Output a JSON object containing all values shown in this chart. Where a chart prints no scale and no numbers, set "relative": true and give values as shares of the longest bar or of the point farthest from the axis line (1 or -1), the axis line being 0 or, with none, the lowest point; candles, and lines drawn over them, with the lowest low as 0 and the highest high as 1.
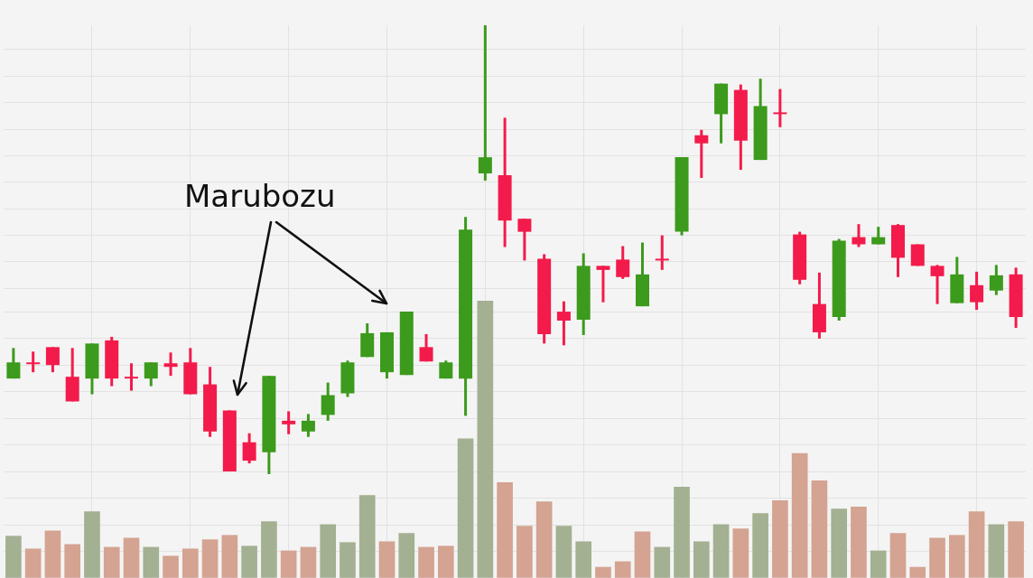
{
  "chart_data": [
    {
      "type": "candlestick",
      "relative": true,
      "grid": true,
      "annotations": [
        "Marubozu"
      ],
      "categories": [
        null,
        null,
        null,
        null,
        null,
        null,
        null,
        null,
        null,
        null,
        null,
        null,
        null,
        null,
        null,
        null,
        null,
        null,
        null,
        null,
        null,
        null,
        null,
        null,
        null,
        null,
        null,
        null,
        null,
        null,
        null,
        null,
        null,
        null,
        null,
        null,
        null,
        null,
        null,
        null,
        null,
        null,
        null,
        null,
        null,
        null,
        null,
        null,
        null,
        null,
        null,
        null
      ],
      "ohlc": [
        [
          0.213,
          0.281,
          0.213,
          0.249
        ],
        [
          0.249,
          0.273,
          0.227,
          0.245
        ],
        [
          0.283,
          0.283,
          0.227,
          0.243
        ],
        [
          0.217,
          0.281,
          0.162,
          0.162
        ],
        [
          0.213,
          0.291,
          0.178,
          0.291
        ],
        [
          0.298,
          0.306,
          0.196,
          0.213
        ],
        [
          0.217,
          0.247,
          0.186,
          0.213
        ],
        [
          0.213,
          0.249,
          0.196,
          0.249
        ],
        [
          0.247,
          0.271,
          0.219,
          0.239
        ],
        [
          0.249,
          0.281,
          0.178,
          0.178
        ],
        [
          0.2,
          0.239,
          0.083,
          0.095
        ],
        [
          0.142,
          0.142,
          0.006,
          0.006
        ],
        [
          0.071,
          0.091,
          0.024,
          0.03
        ],
        [
          0.049,
          0.219,
          0,
          0.219
        ],
        [
          0.119,
          0.14,
          0.089,
          0.111
        ],
        [
          0.095,
          0.134,
          0.083,
          0.119
        ],
        [
          0.132,
          0.204,
          0.119,
          0.176
        ],
        [
          0.18,
          0.253,
          0.172,
          0.249
        ],
        [
          0.261,
          0.336,
          0.261,
          0.314
        ],
        [
          0.227,
          0.316,
          0.213,
          0.316
        ],
        [
          0.221,
          0.362,
          0.221,
          0.362
        ],
        [
          0.283,
          0.312,
          0.251,
          0.251
        ],
        [
          0.213,
          0.253,
          0.213,
          0.249
        ],
        [
          0.213,
          0.573,
          0.13,
          0.545
        ],
        [
          0.67,
          1,
          0.654,
          0.706
        ],
        [
          0.666,
          0.794,
          0.506,
          0.565
        ],
        [
          0.569,
          0.569,
          0.476,
          0.54
        ],
        [
          0.48,
          0.49,
          0.291,
          0.312
        ],
        [
          0.362,
          0.385,
          0.287,
          0.342
        ],
        [
          0.344,
          0.492,
          0.31,
          0.464
        ],
        [
          0.464,
          0.464,
          0.383,
          0.455
        ],
        [
          0.478,
          0.508,
          0.435,
          0.439
        ],
        [
          0.374,
          0.516,
          0.374,
          0.445
        ],
        [
          0.48,
          0.532,
          0.455,
          0.476
        ],
        [
          0.54,
          0.706,
          0.532,
          0.706
        ],
        [
          0.755,
          0.767,
          0.66,
          0.737
        ],
        [
          0.802,
          0.87,
          0.737,
          0.87
        ],
        [
          0.856,
          0.868,
          0.678,
          0.743
        ],
        [
          0.7,
          0.881,
          0.7,
          0.82
        ],
        [
          0.806,
          0.858,
          0.773,
          0.802
        ],
        [
          0.534,
          0.54,
          0.423,
          0.433
        ],
        [
          0.379,
          0.449,
          0.302,
          0.316
        ],
        [
          0.35,
          0.524,
          0.342,
          0.52
        ],
        [
          0.528,
          0.557,
          0.506,
          0.512
        ],
        [
          0.512,
          0.551,
          0.512,
          0.528
        ],
        [
          0.555,
          0.557,
          0.439,
          0.482
        ],
        [
          0.512,
          0.512,
          0.464,
          0.464
        ],
        [
          0.464,
          0.466,
          0.379,
          0.441
        ],
        [
          0.381,
          0.484,
          0.381,
          0.445
        ],
        [
          0.421,
          0.451,
          0.366,
          0.383
        ],
        [
          0.409,
          0.466,
          0.399,
          0.443
        ],
        [
          0.445,
          0.46,
          0.326,
          0.35
        ]
      ],
      "colors": [
        "#3c9a1c",
        "#f31b4b",
        "#f31b4b",
        "#f31b4b",
        "#3c9a1c",
        "#f31b4b",
        "#f31b4b",
        "#3c9a1c",
        "#f31b4b",
        "#f31b4b",
        "#f31b4b",
        "#f31b4b",
        "#f31b4b",
        "#3c9a1c",
        "#f31b4b",
        "#3c9a1c",
        "#3c9a1c",
        "#3c9a1c",
        "#3c9a1c",
        "#3c9a1c",
        "#3c9a1c",
        "#f31b4b",
        "#3c9a1c",
        "#3c9a1c",
        "#3c9a1c",
        "#f31b4b",
        "#f31b4b",
        "#f31b4b",
        "#f31b4b",
        "#3c9a1c",
        "#f31b4b",
        "#f31b4b",
        "#3c9a1c",
        "#f31b4b",
        "#3c9a1c",
        "#f31b4b",
        "#3c9a1c",
        "#f31b4b",
        "#3c9a1c",
        "#f31b4b",
        "#f31b4b",
        "#f31b4b",
        "#3c9a1c",
        "#f31b4b",
        "#3c9a1c",
        "#f31b4b",
        "#f31b4b",
        "#f31b4b",
        "#3c9a1c",
        "#f31b4b",
        "#3c9a1c",
        "#f31b4b"
      ]
    },
    {
      "type": "bar",
      "relative": true,
      "grid": true,
      "categories": [
        null,
        null,
        null,
        null,
        null,
        null,
        null,
        null,
        null,
        null,
        null,
        null,
        null,
        null,
        null,
        null,
        null,
        null,
        null,
        null,
        null,
        null,
        null,
        null,
        null,
        null,
        null,
        null,
        null,
        null,
        null,
        null,
        null,
        null,
        null,
        null,
        null,
        null,
        null,
        null,
        null,
        null,
        null,
        null,
        null,
        null,
        null,
        null,
        null,
        null,
        null,
        null
      ],
      "values": [
        0.151,
        0.105,
        0.17,
        0.121,
        0.239,
        0.111,
        0.144,
        0.111,
        0.079,
        0.105,
        0.138,
        0.154,
        0.115,
        0.203,
        0.098,
        0.111,
        0.193,
        0.128,
        0.298,
        0.131,
        0.161,
        0.111,
        0.115,
        0.502,
        1,
        0.344,
        0.187,
        0.275,
        0.187,
        0.131,
        0.039,
        0.059,
        0.167,
        0.111,
        0.328,
        0.131,
        0.193,
        0.177,
        0.233,
        0.279,
        0.449,
        0.351,
        0.249,
        0.256,
        0.098,
        0.161,
        0.039,
        0.144,
        0.154,
        0.239,
        0.193,
        0.203
      ],
      "colors": [
        "#a3b092",
        "#d4a391",
        "#d4a391",
        "#d4a391",
        "#a3b092",
        "#d4a391",
        "#d4a391",
        "#a3b092",
        "#d4a391",
        "#d4a391",
        "#d4a391",
        "#d4a391",
        "#a3b092",
        "#a3b092",
        "#d4a391",
        "#d4a391",
        "#a3b092",
        "#a3b092",
        "#a3b092",
        "#d4a391",
        "#a3b092",
        "#d4a391",
        "#d4a391",
        "#a3b092",
        "#a3b092",
        "#d4a391",
        "#d4a391",
        "#d4a391",
        "#a3b092",
        "#a3b092",
        "#d4a391",
        "#d4a391",
        "#d4a391",
        "#a3b092",
        "#a3b092",
        "#a3b092",
        "#a3b092",
        "#d4a391",
        "#a3b092",
        "#d4a391",
        "#d4a391",
        "#d4a391",
        "#a3b092",
        "#d4a391",
        "#a3b092",
        "#d4a391",
        "#d4a391",
        "#d4a391",
        "#d4a391",
        "#d4a391",
        "#a3b092",
        "#d4a391"
      ]
    }
  ]
}
